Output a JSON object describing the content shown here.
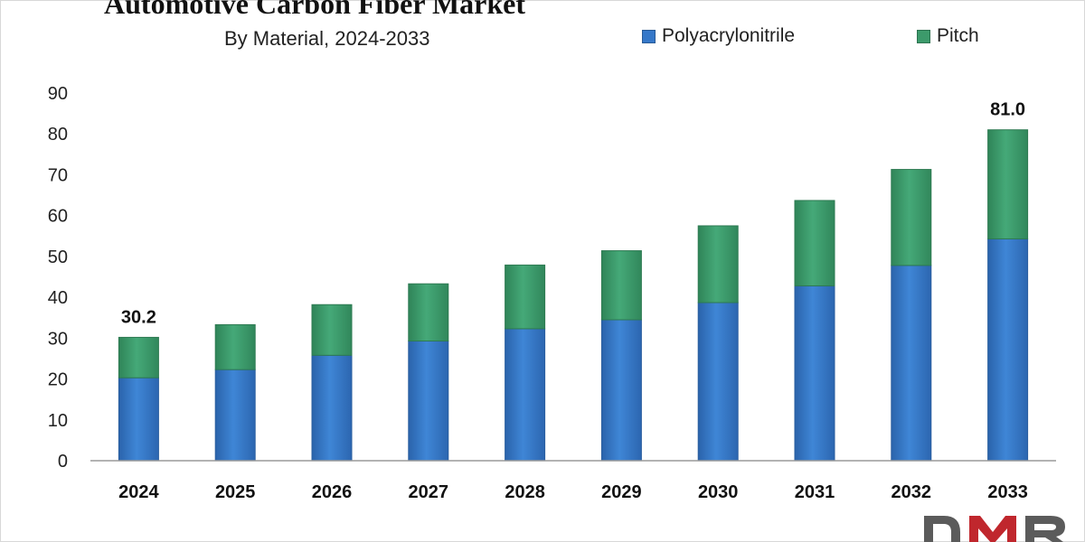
{
  "chart_data": {
    "type": "bar",
    "stacked": true,
    "title": "Automotive Carbon Fiber Market",
    "subtitle": "By Material, 2024-2033",
    "categories": [
      "2024",
      "2025",
      "2026",
      "2027",
      "2028",
      "2029",
      "2030",
      "2031",
      "2032",
      "2033"
    ],
    "series": [
      {
        "name": "Polyacrylonitrile",
        "values": [
          20.3,
          22.3,
          25.8,
          29.3,
          32.3,
          34.5,
          38.7,
          42.8,
          47.8,
          54.3
        ],
        "color": "#3578c9"
      },
      {
        "name": "Pitch",
        "values": [
          9.9,
          11.0,
          12.4,
          14.0,
          15.6,
          16.9,
          18.8,
          20.9,
          23.5,
          26.7
        ],
        "color": "#3c9a6b"
      }
    ],
    "total_labels": {
      "2024": "30.2",
      "2033": "81.0"
    },
    "y_ticks": [
      0,
      10,
      20,
      30,
      40,
      50,
      60,
      70,
      80,
      90
    ],
    "ylim": [
      0,
      90
    ],
    "xlabel": "",
    "ylabel": "",
    "grid": false,
    "legend_position": "top-right"
  },
  "branding": {
    "logo_name": "DMR logo"
  }
}
